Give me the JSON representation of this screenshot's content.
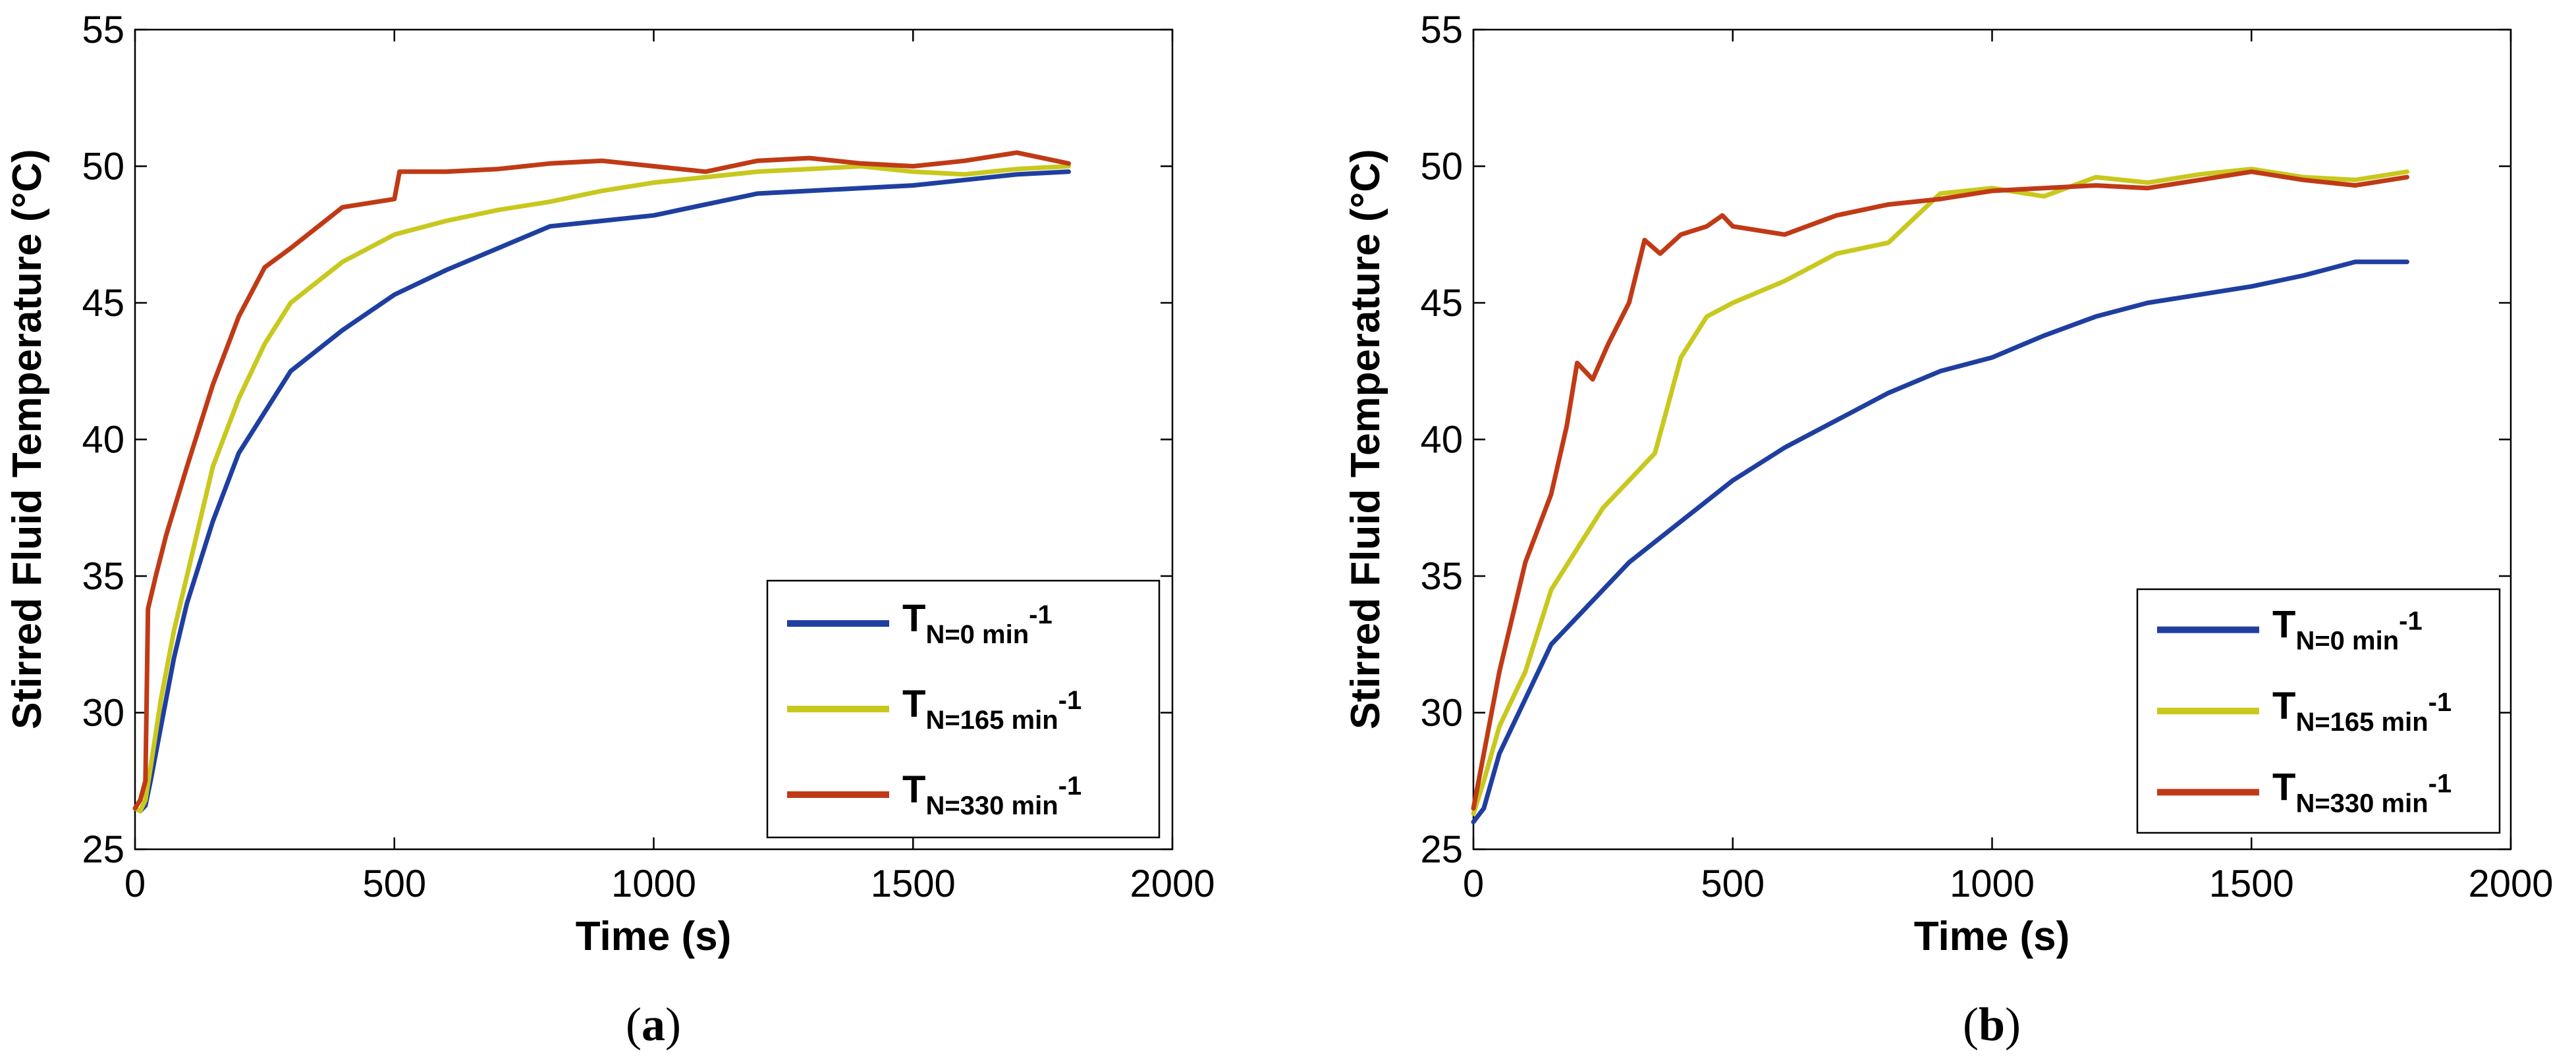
{
  "colors": {
    "series_n0": "#1f3fa0",
    "series_n165": "#c8c81e",
    "series_n330": "#c03a16"
  },
  "captions": {
    "a": {
      "open": "(",
      "letter": "a",
      "close": ")"
    },
    "b": {
      "open": "(",
      "letter": "b",
      "close": ")"
    }
  },
  "chart_data": [
    {
      "type": "line",
      "panel": "a",
      "title": "",
      "xlabel": "Time (s)",
      "ylabel": "Stirred Fluid Temperature (°C)",
      "xlim": [
        0,
        2000
      ],
      "ylim": [
        25,
        55
      ],
      "xticks": [
        "0",
        "500",
        "1000",
        "1500",
        "2000"
      ],
      "yticks": [
        "25",
        "30",
        "35",
        "40",
        "45",
        "50",
        "55"
      ],
      "grid": false,
      "legend_position": "bottom-right",
      "series": [
        {
          "name": "T_N=0 min^-1",
          "legend_main": "T",
          "legend_sub": "N=0 min",
          "legend_sup": "-1",
          "color": "#1f3fa0",
          "x": [
            0,
            10,
            20,
            30,
            50,
            75,
            100,
            150,
            200,
            250,
            300,
            400,
            500,
            600,
            700,
            800,
            900,
            1000,
            1100,
            1200,
            1300,
            1400,
            1500,
            1600,
            1700,
            1800
          ],
          "y": [
            26.5,
            26.4,
            26.6,
            27.5,
            29.5,
            32.0,
            34.0,
            37.0,
            39.5,
            41.0,
            42.5,
            44.0,
            45.3,
            46.2,
            47.0,
            47.8,
            48.0,
            48.2,
            48.6,
            49.0,
            49.1,
            49.2,
            49.3,
            49.5,
            49.7,
            49.8
          ]
        },
        {
          "name": "T_N=165 min^-1",
          "legend_main": "T",
          "legend_sub": "N=165 min",
          "legend_sup": "-1",
          "color": "#c8c81e",
          "x": [
            0,
            10,
            20,
            30,
            50,
            75,
            100,
            150,
            200,
            250,
            300,
            400,
            500,
            600,
            700,
            800,
            900,
            1000,
            1100,
            1200,
            1300,
            1400,
            1500,
            1600,
            1700,
            1800
          ],
          "y": [
            26.5,
            26.4,
            26.8,
            28.0,
            30.5,
            33.0,
            35.0,
            39.0,
            41.5,
            43.5,
            45.0,
            46.5,
            47.5,
            48.0,
            48.4,
            48.7,
            49.1,
            49.4,
            49.6,
            49.8,
            49.9,
            50.0,
            49.8,
            49.7,
            49.9,
            50.0
          ]
        },
        {
          "name": "T_N=330 min^-1",
          "legend_main": "T",
          "legend_sub": "N=330 min",
          "legend_sup": "-1",
          "color": "#c03a16",
          "x": [
            0,
            10,
            20,
            25,
            40,
            60,
            100,
            150,
            200,
            250,
            300,
            400,
            500,
            510,
            600,
            700,
            800,
            900,
            1000,
            1100,
            1200,
            1300,
            1400,
            1500,
            1600,
            1700,
            1800
          ],
          "y": [
            26.5,
            26.8,
            27.5,
            33.8,
            35.0,
            36.5,
            39.0,
            42.0,
            44.5,
            46.3,
            47.0,
            48.5,
            48.8,
            49.8,
            49.8,
            49.9,
            50.1,
            50.2,
            50.0,
            49.8,
            50.2,
            50.3,
            50.1,
            50.0,
            50.2,
            50.5,
            50.1
          ]
        }
      ]
    },
    {
      "type": "line",
      "panel": "b",
      "title": "",
      "xlabel": "Time (s)",
      "ylabel": "Stirred Fluid Temperature (°C)",
      "xlim": [
        0,
        2000
      ],
      "ylim": [
        25,
        55
      ],
      "xticks": [
        "0",
        "500",
        "1000",
        "1500",
        "2000"
      ],
      "yticks": [
        "25",
        "30",
        "35",
        "40",
        "45",
        "50",
        "55"
      ],
      "grid": false,
      "legend_position": "bottom-right",
      "series": [
        {
          "name": "T_N=0 min^-1",
          "legend_main": "T",
          "legend_sub": "N=0 min",
          "legend_sup": "-1",
          "color": "#1f3fa0",
          "x": [
            0,
            20,
            50,
            100,
            150,
            200,
            300,
            400,
            500,
            600,
            700,
            800,
            900,
            1000,
            1100,
            1200,
            1300,
            1400,
            1500,
            1600,
            1700,
            1800
          ],
          "y": [
            26.0,
            26.5,
            28.5,
            30.5,
            32.5,
            33.5,
            35.5,
            37.0,
            38.5,
            39.7,
            40.7,
            41.7,
            42.5,
            43.0,
            43.8,
            44.5,
            45.0,
            45.3,
            45.6,
            46.0,
            46.5,
            46.5
          ]
        },
        {
          "name": "T_N=165 min^-1",
          "legend_main": "T",
          "legend_sub": "N=165 min",
          "legend_sup": "-1",
          "color": "#c8c81e",
          "x": [
            0,
            20,
            50,
            100,
            150,
            200,
            250,
            300,
            350,
            400,
            450,
            500,
            600,
            700,
            800,
            900,
            1000,
            1100,
            1200,
            1300,
            1400,
            1500,
            1600,
            1700,
            1800
          ],
          "y": [
            26.3,
            27.5,
            29.5,
            31.5,
            34.5,
            36.0,
            37.5,
            38.5,
            39.5,
            43.0,
            44.5,
            45.0,
            45.8,
            46.8,
            47.2,
            49.0,
            49.2,
            48.9,
            49.6,
            49.4,
            49.7,
            49.9,
            49.6,
            49.5,
            49.8
          ]
        },
        {
          "name": "T_N=330 min^-1",
          "legend_main": "T",
          "legend_sub": "N=330 min",
          "legend_sup": "-1",
          "color": "#c03a16",
          "x": [
            0,
            20,
            50,
            100,
            150,
            180,
            200,
            230,
            260,
            300,
            330,
            360,
            400,
            450,
            480,
            500,
            600,
            700,
            800,
            900,
            1000,
            1100,
            1200,
            1300,
            1400,
            1500,
            1600,
            1700,
            1800
          ],
          "y": [
            26.5,
            28.5,
            31.5,
            35.5,
            38.0,
            40.5,
            42.8,
            42.2,
            43.5,
            45.0,
            47.3,
            46.8,
            47.5,
            47.8,
            48.2,
            47.8,
            47.5,
            48.2,
            48.6,
            48.8,
            49.1,
            49.2,
            49.3,
            49.2,
            49.5,
            49.8,
            49.5,
            49.3,
            49.6
          ]
        }
      ]
    }
  ]
}
